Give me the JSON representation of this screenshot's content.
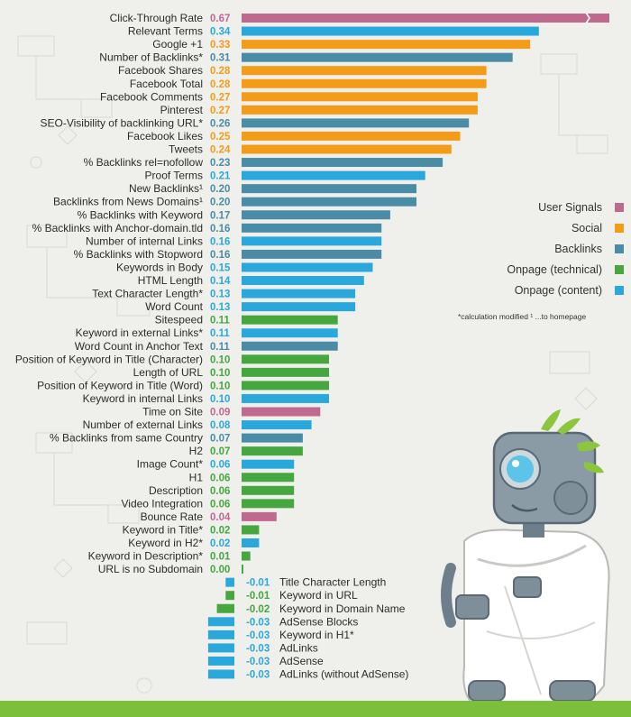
{
  "chart_data": {
    "type": "bar",
    "orientation": "horizontal",
    "categories_colors": {
      "User Signals": "#c0698f",
      "Social": "#f39c1a",
      "Backlinks": "#4a8ba6",
      "Onpage (technical)": "#46a640",
      "Onpage (content)": "#2aa8dc"
    },
    "items": [
      {
        "label": "Click-Through Rate",
        "value": 0.67,
        "value_label": "0.67",
        "category": "User Signals"
      },
      {
        "label": "Relevant Terms",
        "value": 0.34,
        "value_label": "0.34",
        "category": "Onpage (content)"
      },
      {
        "label": "Google +1",
        "value": 0.33,
        "value_label": "0.33",
        "category": "Social"
      },
      {
        "label": "Number of Backlinks*",
        "value": 0.31,
        "value_label": "0.31",
        "category": "Backlinks"
      },
      {
        "label": "Facebook Shares",
        "value": 0.28,
        "value_label": "0.28",
        "category": "Social"
      },
      {
        "label": "Facebook Total",
        "value": 0.28,
        "value_label": "0.28",
        "category": "Social"
      },
      {
        "label": "Facebook Comments",
        "value": 0.27,
        "value_label": "0.27",
        "category": "Social"
      },
      {
        "label": "Pinterest",
        "value": 0.27,
        "value_label": "0.27",
        "category": "Social"
      },
      {
        "label": "SEO-Visibility of backlinking URL*",
        "value": 0.26,
        "value_label": "0.26",
        "category": "Backlinks"
      },
      {
        "label": "Facebook Likes",
        "value": 0.25,
        "value_label": "0.25",
        "category": "Social"
      },
      {
        "label": "Tweets",
        "value": 0.24,
        "value_label": "0.24",
        "category": "Social"
      },
      {
        "label": "% Backlinks rel=nofollow",
        "value": 0.23,
        "value_label": "0.23",
        "category": "Backlinks"
      },
      {
        "label": "Proof Terms",
        "value": 0.21,
        "value_label": "0.21",
        "category": "Onpage (content)"
      },
      {
        "label": "New Backlinks¹",
        "value": 0.2,
        "value_label": "0.20",
        "category": "Backlinks"
      },
      {
        "label": "Backlinks from News Domains¹",
        "value": 0.2,
        "value_label": "0.20",
        "category": "Backlinks"
      },
      {
        "label": "% Backlinks with Keyword",
        "value": 0.17,
        "value_label": "0.17",
        "category": "Backlinks"
      },
      {
        "label": "% Backlinks with Anchor-domain.tld",
        "value": 0.16,
        "value_label": "0.16",
        "category": "Backlinks"
      },
      {
        "label": "Number of internal Links",
        "value": 0.16,
        "value_label": "0.16",
        "category": "Onpage (content)"
      },
      {
        "label": "% Backlinks with Stopword",
        "value": 0.16,
        "value_label": "0.16",
        "category": "Backlinks"
      },
      {
        "label": "Keywords in Body",
        "value": 0.15,
        "value_label": "0.15",
        "category": "Onpage (content)"
      },
      {
        "label": "HTML Length",
        "value": 0.14,
        "value_label": "0.14",
        "category": "Onpage (content)"
      },
      {
        "label": "Text Character Length*",
        "value": 0.13,
        "value_label": "0.13",
        "category": "Onpage (content)"
      },
      {
        "label": "Word Count",
        "value": 0.13,
        "value_label": "0.13",
        "category": "Onpage (content)"
      },
      {
        "label": "Sitespeed",
        "value": 0.11,
        "value_label": "0.11",
        "category": "Onpage (technical)"
      },
      {
        "label": "Keyword in external Links*",
        "value": 0.11,
        "value_label": "0.11",
        "category": "Onpage (content)"
      },
      {
        "label": "Word Count in Anchor Text",
        "value": 0.11,
        "value_label": "0.11",
        "category": "Backlinks"
      },
      {
        "label": "Position of Keyword in Title (Character)",
        "value": 0.1,
        "value_label": "0.10",
        "category": "Onpage (technical)"
      },
      {
        "label": "Length of URL",
        "value": 0.1,
        "value_label": "0.10",
        "category": "Onpage (technical)"
      },
      {
        "label": "Position of Keyword in Title (Word)",
        "value": 0.1,
        "value_label": "0.10",
        "category": "Onpage (technical)"
      },
      {
        "label": "Keyword in internal Links",
        "value": 0.1,
        "value_label": "0.10",
        "category": "Onpage (content)"
      },
      {
        "label": "Time on Site",
        "value": 0.09,
        "value_label": "0.09",
        "category": "User Signals"
      },
      {
        "label": "Number of external Links",
        "value": 0.08,
        "value_label": "0.08",
        "category": "Onpage (content)"
      },
      {
        "label": "% Backlinks from same Country",
        "value": 0.07,
        "value_label": "0.07",
        "category": "Backlinks"
      },
      {
        "label": "H2",
        "value": 0.07,
        "value_label": "0.07",
        "category": "Onpage (technical)"
      },
      {
        "label": "Image Count*",
        "value": 0.06,
        "value_label": "0.06",
        "category": "Onpage (content)"
      },
      {
        "label": "H1",
        "value": 0.06,
        "value_label": "0.06",
        "category": "Onpage (technical)"
      },
      {
        "label": "Description",
        "value": 0.06,
        "value_label": "0.06",
        "category": "Onpage (technical)"
      },
      {
        "label": "Video Integration",
        "value": 0.06,
        "value_label": "0.06",
        "category": "Onpage (technical)"
      },
      {
        "label": "Bounce Rate",
        "value": 0.04,
        "value_label": "0.04",
        "category": "User Signals"
      },
      {
        "label": "Keyword in Title*",
        "value": 0.02,
        "value_label": "0.02",
        "category": "Onpage (technical)"
      },
      {
        "label": "Keyword in H2*",
        "value": 0.02,
        "value_label": "0.02",
        "category": "Onpage (content)"
      },
      {
        "label": "Keyword in Description*",
        "value": 0.01,
        "value_label": "0.01",
        "category": "Onpage (technical)"
      },
      {
        "label": "URL is no Subdomain",
        "value": 0.0,
        "value_label": "0.00",
        "category": "Onpage (technical)"
      },
      {
        "label": "Title Character Length",
        "value": -0.01,
        "value_label": "-0.01",
        "category": "Onpage (content)"
      },
      {
        "label": "Keyword in URL",
        "value": -0.01,
        "value_label": "-0.01",
        "category": "Onpage (technical)"
      },
      {
        "label": "Keyword in Domain Name",
        "value": -0.02,
        "value_label": "-0.02",
        "category": "Onpage (technical)"
      },
      {
        "label": "AdSense Blocks",
        "value": -0.03,
        "value_label": "-0.03",
        "category": "Onpage (content)"
      },
      {
        "label": "Keyword in H1*",
        "value": -0.03,
        "value_label": "-0.03",
        "category": "Onpage (content)"
      },
      {
        "label": "AdLinks",
        "value": -0.03,
        "value_label": "-0.03",
        "category": "Onpage (content)"
      },
      {
        "label": "AdSense",
        "value": -0.03,
        "value_label": "-0.03",
        "category": "Onpage (content)"
      },
      {
        "label": "AdLinks (without AdSense)",
        "value": -0.03,
        "value_label": "-0.03",
        "category": "Onpage (content)"
      }
    ],
    "legend": [
      {
        "name": "User Signals",
        "color": "#c0698f"
      },
      {
        "name": "Social",
        "color": "#f39c1a"
      },
      {
        "name": "Backlinks",
        "color": "#4a8ba6"
      },
      {
        "name": "Onpage (technical)",
        "color": "#46a640"
      },
      {
        "name": "Onpage (content)",
        "color": "#2aa8dc"
      }
    ],
    "legend_placement": "right",
    "footnote": "*calculation modified   ¹ ...to homepage",
    "grid": false,
    "axis_break_on_largest_bar": true
  }
}
